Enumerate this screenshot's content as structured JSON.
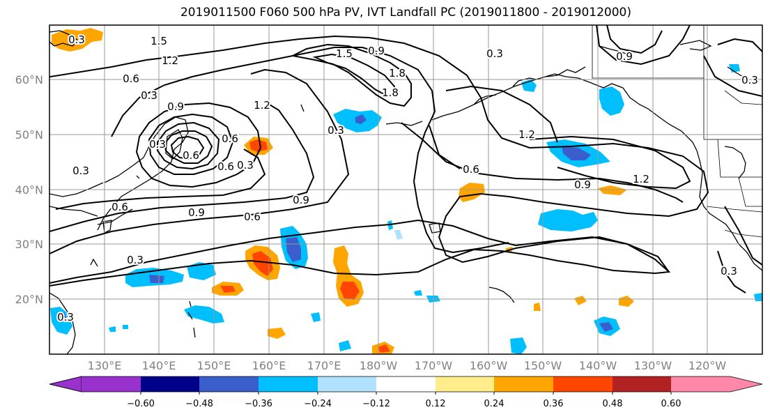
{
  "title": "2019011500 F060 500 hPa PV, IVT Landfall PC (2019011800 - 2019012000)",
  "lat_labels": [
    "60°N",
    "50°N",
    "40°N",
    "30°N",
    "20°N"
  ],
  "lon_labels": [
    "130°E",
    "140°E",
    "150°E",
    "160°E",
    "170°E",
    "180°W",
    "170°W",
    "160°W",
    "150°W",
    "140°W",
    "130°W",
    "120°W"
  ],
  "colorbar": {
    "colors": [
      "#9932cc",
      "#00008b",
      "#3a5fcd",
      "#00bfff",
      "#b0e2ff",
      "#ffffff",
      "#ffec8b",
      "#ffa500",
      "#ff4500",
      "#b22222",
      "#ff88a8"
    ],
    "tick_labels": [
      "−0.60",
      "−0.48",
      "−0.36",
      "−0.24",
      "−0.12",
      "0.12",
      "0.24",
      "0.36",
      "0.48",
      "0.60"
    ]
  },
  "contour_labels": [
    "1.5",
    "1.2",
    "0.6",
    "0.3",
    "0.9",
    "1.2",
    "0.3",
    "0.6",
    "0.3",
    "0.9",
    "0.6",
    "0.3",
    "1.5",
    "0.9",
    "1.8",
    "1.8",
    "0.3",
    "0.3",
    "1.2",
    "0.6",
    "0.9",
    "1.2",
    "0.3",
    "0.9",
    "0.3",
    "0.9",
    "0.6",
    "0.3",
    "0.6",
    "0.3",
    "0.6",
    "0.3"
  ]
}
